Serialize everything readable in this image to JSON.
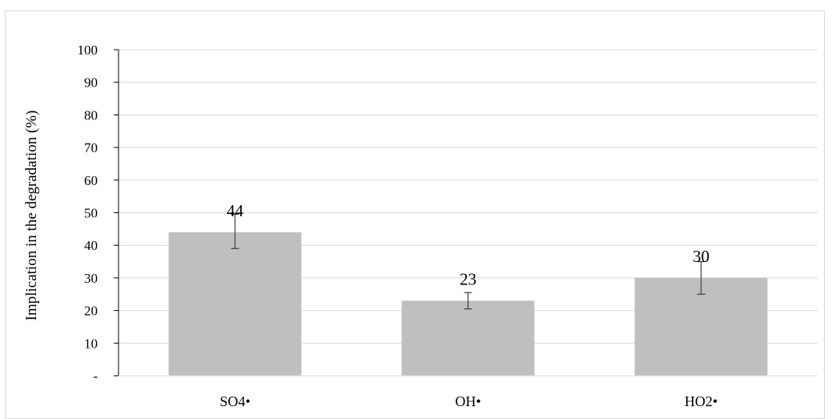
{
  "chart_data": {
    "type": "bar",
    "title": "",
    "xlabel": "",
    "ylabel": "Implication in the degradation (%)",
    "categories": [
      "SO4•",
      "OH•",
      "HO2•"
    ],
    "values": [
      44,
      23,
      30
    ],
    "error_low": [
      39,
      20.5,
      25
    ],
    "error_high": [
      49.5,
      25.5,
      35
    ],
    "data_labels": [
      "44",
      "23",
      "30"
    ],
    "ylim": [
      0,
      100
    ],
    "y_ticks": [
      "-",
      "10",
      "20",
      "30",
      "40",
      "50",
      "60",
      "70",
      "80",
      "90",
      "100"
    ],
    "grid": true,
    "legend": "none",
    "colors": {
      "bar": "#bfbfbf",
      "grid": "#d9d9d9",
      "axis": "#000000",
      "error_bar": "#404040"
    }
  }
}
